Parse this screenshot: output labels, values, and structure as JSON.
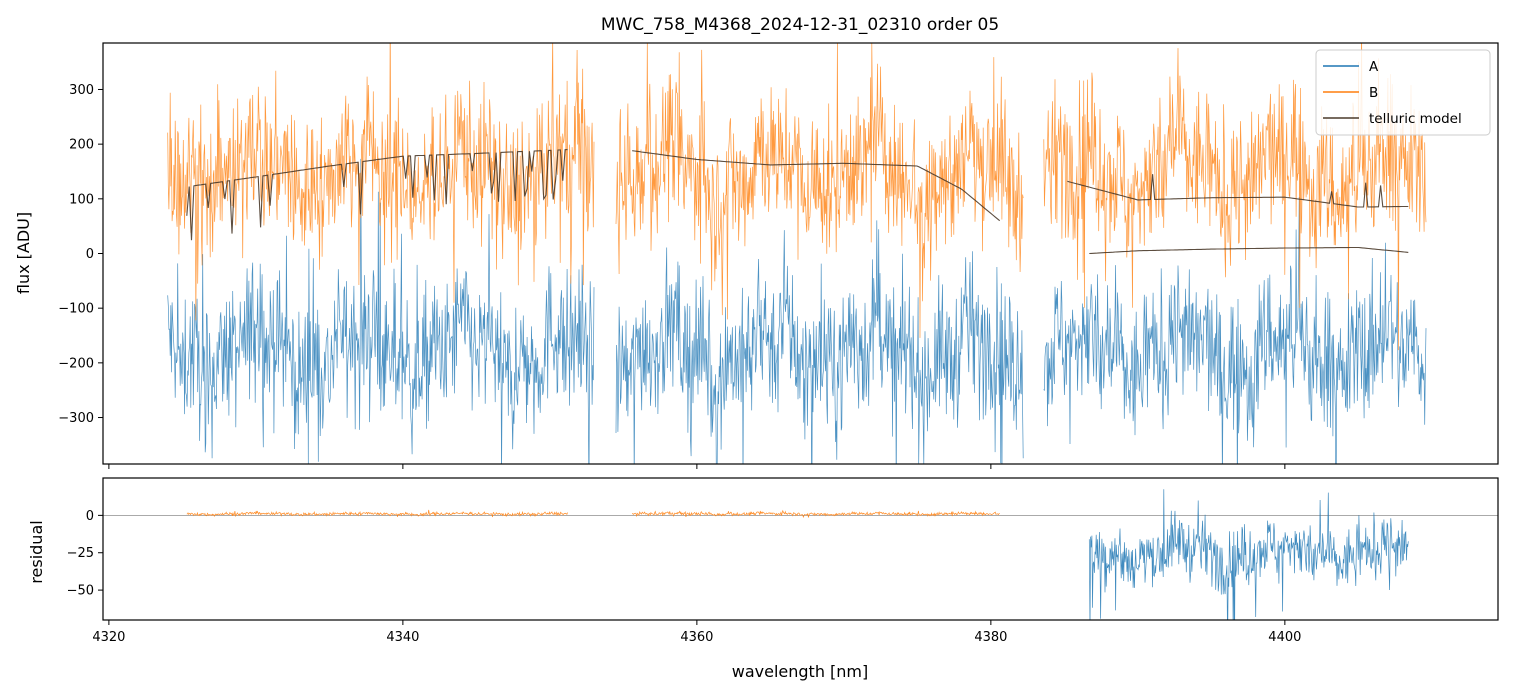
{
  "chart_data": [
    {
      "type": "line",
      "title": "MWC_758_M4368_2024-12-31_02310  order 05",
      "xlabel": "",
      "ylabel": "flux [ADU]",
      "xlim": [
        4319.6,
        4414.5
      ],
      "ylim": [
        -385,
        385
      ],
      "yticks": [
        300,
        200,
        100,
        0,
        -100,
        -200,
        -300
      ],
      "ytick_labels": [
        "300",
        "200",
        "100",
        "0",
        "−100",
        "−200",
        "−300"
      ],
      "xticks": [
        4320,
        4340,
        4360,
        4380,
        4400
      ],
      "legend": {
        "position": "top-right",
        "entries": [
          "A",
          "B",
          "telluric model"
        ]
      },
      "series": [
        {
          "name": "A",
          "color": "#1f77b4",
          "segments": [
            [
              4324.0,
              4353.0
            ],
            [
              4354.5,
              4382.2
            ],
            [
              4383.6,
              4409.6
            ]
          ],
          "approx_mean": -180,
          "approx_range": [
            -385,
            300
          ]
        },
        {
          "name": "B",
          "color": "#ff7f0e",
          "segments": [
            [
              4324.0,
              4353.0
            ],
            [
              4354.5,
              4382.2
            ],
            [
              4383.6,
              4409.6
            ]
          ],
          "approx_mean": 150,
          "approx_range": [
            -250,
            385
          ]
        },
        {
          "name": "telluric model",
          "color": "#4a3a2a",
          "segments": [
            {
              "x": [
                4325.3,
                4330,
                4335,
                4340,
                4345,
                4351.2
              ],
              "y": [
                122,
                140,
                160,
                178,
                183,
                190
              ]
            },
            {
              "x": [
                4355.6,
                4360,
                4365,
                4370,
                4375,
                4378,
                4380.6
              ],
              "y": [
                188,
                172,
                162,
                165,
                160,
                118,
                60
              ]
            },
            {
              "x": [
                4385.2,
                4390,
                4395,
                4400,
                4405,
                4408.4
              ],
              "y": [
                132,
                98,
                102,
                103,
                85,
                86
              ]
            },
            {
              "x": [
                4386.7,
                4390,
                4395,
                4400,
                4405,
                4408.4
              ],
              "y": [
                0,
                5,
                8,
                10,
                11,
                2
              ]
            }
          ]
        }
      ]
    },
    {
      "type": "line",
      "title": "",
      "xlabel": "wavelength [nm]",
      "ylabel": "residual",
      "xlim": [
        4319.6,
        4414.5
      ],
      "ylim": [
        -70,
        25
      ],
      "yticks": [
        0,
        -25,
        -50
      ],
      "ytick_labels": [
        "0",
        "−25",
        "−50"
      ],
      "xticks": [
        4320,
        4340,
        4360,
        4380,
        4400
      ],
      "xtick_labels": [
        "4320",
        "4340",
        "4360",
        "4380",
        "4400"
      ],
      "series": [
        {
          "name": "",
          "color": "#ff7f0e",
          "segments": [
            [
              4325.3,
              4351.2
            ],
            [
              4355.6,
              4380.6
            ]
          ],
          "approx_mean": 1
        },
        {
          "name": "",
          "color": "#1f77b4",
          "segments": [
            [
              4386.7,
              4408.4
            ]
          ],
          "approx_mean": -25
        }
      ]
    }
  ]
}
